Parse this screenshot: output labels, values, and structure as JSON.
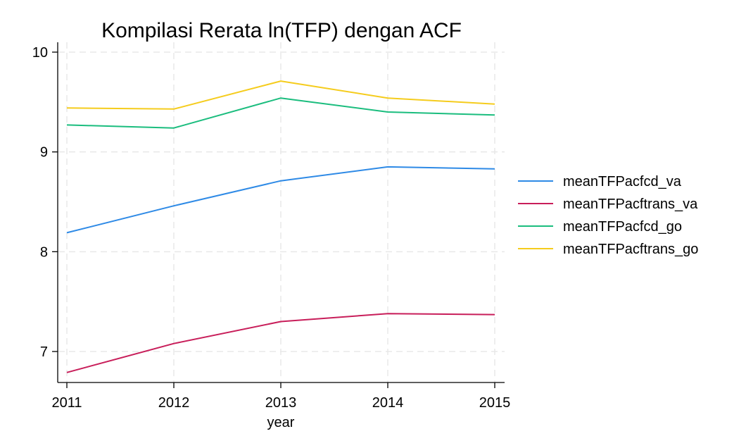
{
  "chart_data": {
    "type": "line",
    "title": "Kompilasi Rerata ln(TFP) dengan ACF",
    "xlabel": "year",
    "ylabel": "",
    "x": [
      2011,
      2012,
      2013,
      2014,
      2015
    ],
    "x_tick_labels": [
      "2011",
      "2012",
      "2013",
      "2014",
      "2015"
    ],
    "y_ticks": [
      7,
      8,
      9,
      10
    ],
    "y_tick_labels": [
      "7",
      "8",
      "9",
      "10"
    ],
    "ylim": [
      6.7,
      10.2
    ],
    "grid": true,
    "legend_position": "right",
    "series": [
      {
        "name": "meanTFPacfcd_va",
        "color": "#2e8ae6",
        "values": [
          8.19,
          8.46,
          8.71,
          8.85,
          8.83
        ]
      },
      {
        "name": "meanTFPacftrans_va",
        "color": "#c81e5a",
        "values": [
          6.79,
          7.08,
          7.3,
          7.38,
          7.37
        ]
      },
      {
        "name": "meanTFPacfcd_go",
        "color": "#1bbd7e",
        "values": [
          9.27,
          9.24,
          9.54,
          9.4,
          9.37
        ]
      },
      {
        "name": "meanTFPacftrans_go",
        "color": "#f5cc1d",
        "values": [
          9.44,
          9.43,
          9.71,
          9.54,
          9.48
        ]
      }
    ]
  }
}
